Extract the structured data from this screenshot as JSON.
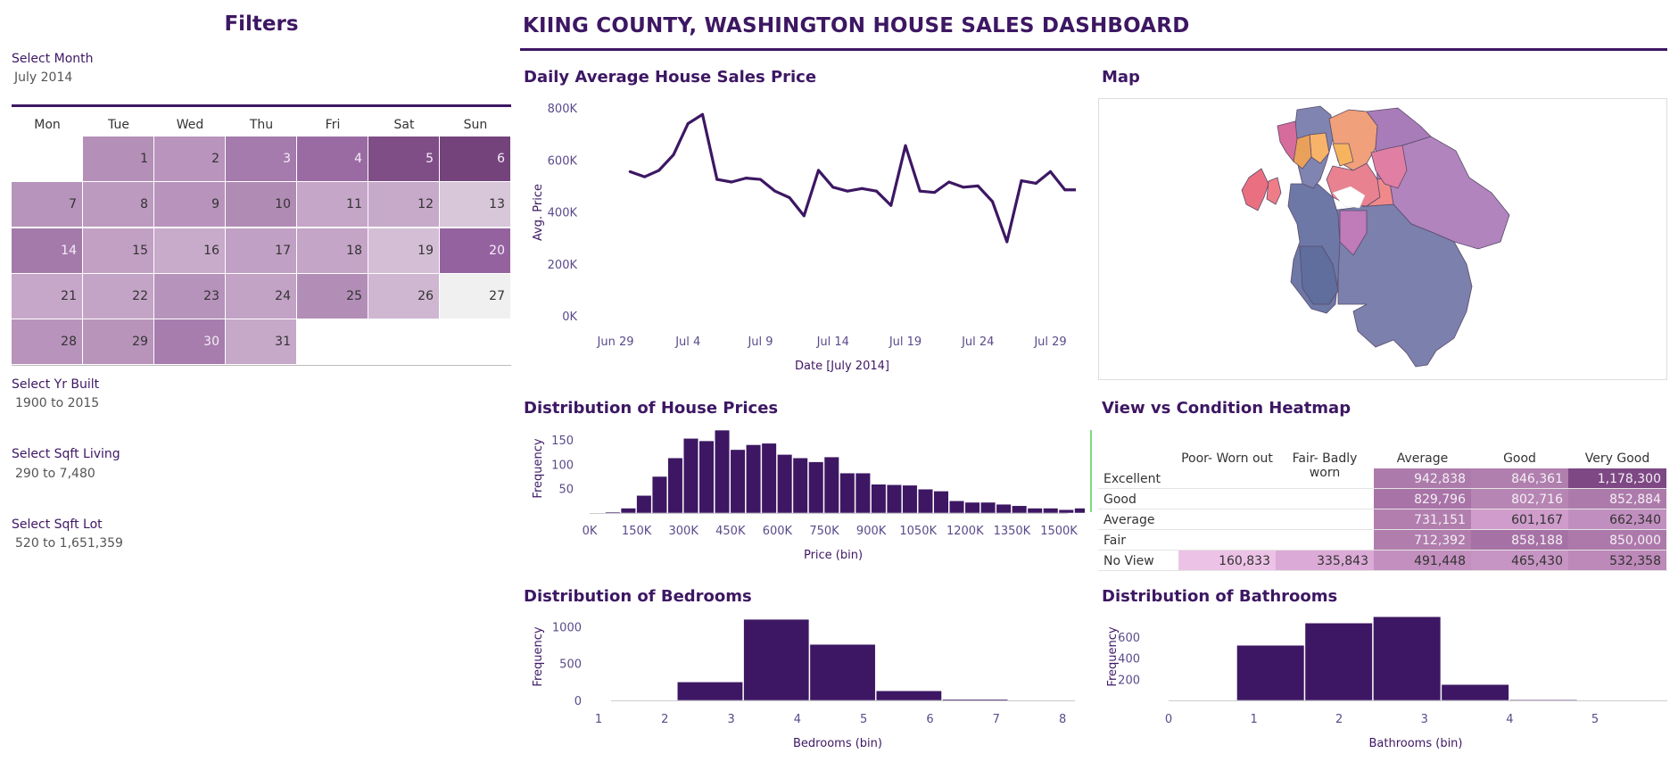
{
  "header": {
    "filters_title": "Filters",
    "dashboard_title": "KIING COUNTY, WASHINGTON HOUSE SALES DASHBOARD"
  },
  "filters": {
    "month": {
      "label": "Select Month",
      "value": "July 2014"
    },
    "yr_built": {
      "label": "Select Yr Built",
      "value": "1900 to 2015"
    },
    "sqft_living": {
      "label": "Select Sqft Living",
      "value": "290 to 7,480"
    },
    "sqft_lot": {
      "label": "Select Sqft Lot",
      "value": "520 to 1,651,359"
    }
  },
  "calendar": {
    "weekdays": [
      "Mon",
      "Tue",
      "Wed",
      "Thu",
      "Fri",
      "Sat",
      "Sun"
    ],
    "weeks": [
      [
        null,
        {
          "d": "1",
          "c": "#b48fb8"
        },
        {
          "d": "2",
          "c": "#b994bd"
        },
        {
          "d": "3",
          "c": "#a57aad"
        },
        {
          "d": "4",
          "c": "#9a6ba3"
        },
        {
          "d": "5",
          "c": "#7f4e86"
        },
        {
          "d": "6",
          "c": "#74437c"
        }
      ],
      [
        {
          "d": "7",
          "c": "#b694bb"
        },
        {
          "d": "8",
          "c": "#bc9ac0"
        },
        {
          "d": "9",
          "c": "#b894bc"
        },
        {
          "d": "10",
          "c": "#b08cb5"
        },
        {
          "d": "11",
          "c": "#c5a5c8"
        },
        {
          "d": "12",
          "c": "#c7a9ca"
        },
        {
          "d": "13",
          "c": "#d8c6d9"
        }
      ],
      [
        {
          "d": "14",
          "c": "#a47aab"
        },
        {
          "d": "15",
          "c": "#c1a0c4"
        },
        {
          "d": "16",
          "c": "#c8aacb"
        },
        {
          "d": "17",
          "c": "#c0a0c4"
        },
        {
          "d": "18",
          "c": "#c4a4c7"
        },
        {
          "d": "19",
          "c": "#d4bed5"
        },
        {
          "d": "20",
          "c": "#9562a0"
        }
      ],
      [
        {
          "d": "21",
          "c": "#c6a7c9"
        },
        {
          "d": "22",
          "c": "#c4a4c6"
        },
        {
          "d": "23",
          "c": "#b693bb"
        },
        {
          "d": "24",
          "c": "#c2a2c5"
        },
        {
          "d": "25",
          "c": "#b28eb7"
        },
        {
          "d": "26",
          "c": "#cfb6d1"
        },
        {
          "d": "27",
          "c": "#f0f0f0"
        }
      ],
      [
        {
          "d": "28",
          "c": "#b893bc"
        },
        {
          "d": "29",
          "c": "#b894bb"
        },
        {
          "d": "30",
          "c": "#a67dad"
        },
        {
          "d": "31",
          "c": "#c6a8c9"
        },
        null,
        null,
        null
      ]
    ]
  },
  "sections": {
    "daily_title": "Daily Average House Sales Price",
    "map_title": "Map",
    "prices_title": "Distribution of House Prices",
    "heatmap_title": "View vs Condition Heatmap",
    "bedrooms_title": "Distribution of Bedrooms",
    "bathrooms_title": "Distribution of Bathrooms"
  },
  "colors": {
    "accent": "#3d1763",
    "bar": "#3d1763",
    "line": "#3d1763"
  },
  "chart_data": [
    {
      "type": "line",
      "title": "Daily Average House Sales Price",
      "xlabel": "Date [July 2014]",
      "ylabel": "Avg. Price",
      "ylim": [
        0,
        800000
      ],
      "yticks": [
        "0K",
        "200K",
        "400K",
        "600K",
        "800K"
      ],
      "xticks": [
        "Jun 29",
        "Jul 4",
        "Jul 9",
        "Jul 14",
        "Jul 19",
        "Jul 24",
        "Jul 29"
      ],
      "x": [
        "Jun 30",
        "Jul 1",
        "Jul 2",
        "Jul 3",
        "Jul 4",
        "Jul 5",
        "Jul 6",
        "Jul 7",
        "Jul 8",
        "Jul 9",
        "Jul 10",
        "Jul 11",
        "Jul 12",
        "Jul 13",
        "Jul 14",
        "Jul 15",
        "Jul 16",
        "Jul 17",
        "Jul 18",
        "Jul 19",
        "Jul 20",
        "Jul 21",
        "Jul 22",
        "Jul 23",
        "Jul 24",
        "Jul 25",
        "Jul 26",
        "Jul 27",
        "Jul 28",
        "Jul 29",
        "Jul 30",
        "Jul 31"
      ],
      "values": [
        555000,
        535000,
        560000,
        620000,
        740000,
        775000,
        525000,
        515000,
        530000,
        525000,
        480000,
        455000,
        385000,
        560000,
        495000,
        480000,
        490000,
        480000,
        425000,
        655000,
        480000,
        475000,
        515000,
        495000,
        500000,
        440000,
        285000,
        520000,
        510000,
        555000,
        485000,
        485000
      ]
    },
    {
      "type": "bar",
      "title": "Distribution of House Prices",
      "xlabel": "Price (bin)",
      "ylabel": "Frequency",
      "ylim": [
        0,
        175
      ],
      "yticks": [
        "50",
        "100",
        "150"
      ],
      "xticks": [
        "0K",
        "150K",
        "300K",
        "450K",
        "600K",
        "750K",
        "900K",
        "1050K",
        "1200K",
        "1350K",
        "1500K"
      ],
      "bin_width": 50000,
      "bins_start": 50000,
      "values": [
        2,
        10,
        36,
        75,
        113,
        153,
        148,
        170,
        130,
        140,
        143,
        120,
        113,
        105,
        115,
        82,
        82,
        59,
        58,
        57,
        49,
        45,
        25,
        22,
        22,
        18,
        15,
        10,
        10,
        7,
        10,
        12,
        5,
        8,
        12,
        3,
        10,
        2,
        3,
        2,
        2
      ]
    },
    {
      "type": "heatmap",
      "title": "View vs Condition Heatmap",
      "columns": [
        "Poor- Worn out",
        "Fair- Badly worn",
        "Average",
        "Good",
        "Very Good"
      ],
      "rows": [
        "Excellent",
        "Good",
        "Average",
        "Fair",
        "No View"
      ],
      "values": [
        [
          null,
          null,
          "942,838",
          "846,361",
          "1,178,300"
        ],
        [
          null,
          null,
          "829,796",
          "802,716",
          "852,884"
        ],
        [
          null,
          null,
          "731,151",
          "601,167",
          "662,340"
        ],
        [
          null,
          null,
          "712,392",
          "858,188",
          "850,000"
        ],
        [
          "160,833",
          "335,843",
          "491,448",
          "465,430",
          "532,358"
        ]
      ],
      "cell_colors": [
        [
          null,
          null,
          "#ad7bab",
          "#b07fae",
          "#7d4883"
        ],
        [
          null,
          null,
          "#a873a6",
          "#b785b4",
          "#ad7bab"
        ],
        [
          null,
          null,
          "#b27eae",
          "#cf9ccb",
          "#c18fbf"
        ],
        [
          null,
          null,
          "#b07dad",
          "#a672a5",
          "#ac79aa"
        ],
        [
          "#ecc3e6",
          "#dcaad7",
          "#c28fbf",
          "#c695c3",
          "#bc89b9"
        ]
      ]
    },
    {
      "type": "bar",
      "title": "Distribution of Bedrooms",
      "xlabel": "Bedrooms (bin)",
      "ylabel": "Frequency",
      "ylim": [
        0,
        1150
      ],
      "yticks": [
        "0",
        "500",
        "1000"
      ],
      "xticks": [
        "1",
        "2",
        "3",
        "4",
        "5",
        "6",
        "7",
        "8"
      ],
      "bins": [
        "1",
        "2",
        "3",
        "4",
        "5",
        "6",
        "7"
      ],
      "values": [
        3,
        250,
        1100,
        760,
        130,
        15,
        2
      ]
    },
    {
      "type": "bar",
      "title": "Distribution of Bathrooms",
      "xlabel": "Bathrooms (bin)",
      "ylabel": "Frequency",
      "ylim": [
        0,
        800
      ],
      "yticks": [
        "200",
        "400",
        "600"
      ],
      "xticks": [
        "0",
        "1",
        "2",
        "3",
        "4",
        "5"
      ],
      "bins": [
        "0",
        "0.8",
        "1.6",
        "2.4",
        "3.2",
        "4.0",
        "4.8"
      ],
      "values": [
        2,
        520,
        730,
        790,
        150,
        5,
        2
      ]
    }
  ]
}
